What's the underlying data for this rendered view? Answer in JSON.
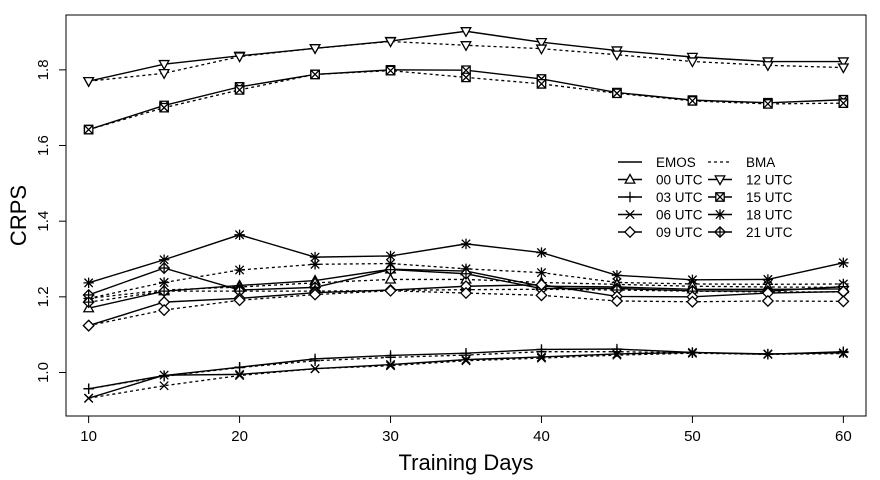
{
  "chart_data": {
    "type": "line",
    "xlabel": "Training Days",
    "ylabel": "CRPS",
    "xlim": [
      8.5,
      61.5
    ],
    "ylim": [
      0.885,
      1.945
    ],
    "x": [
      10,
      15,
      20,
      25,
      30,
      35,
      40,
      45,
      50,
      55,
      60
    ],
    "xticks": [
      10,
      20,
      30,
      40,
      50,
      60
    ],
    "yticks": [
      1.0,
      1.2,
      1.4,
      1.6,
      1.8
    ],
    "ytick_labels": [
      "1.0",
      "1.2",
      "1.4",
      "1.6",
      "1.8"
    ],
    "legend": {
      "placement": "right",
      "method_labels": [
        "EMOS",
        "BMA"
      ],
      "entries": [
        {
          "label": "00 UTC",
          "marker": "triangle"
        },
        {
          "label": "12 UTC",
          "marker": "triangle-down"
        },
        {
          "label": "03 UTC",
          "marker": "plus"
        },
        {
          "label": "15 UTC",
          "marker": "square-cross"
        },
        {
          "label": "06 UTC",
          "marker": "cross"
        },
        {
          "label": "18 UTC",
          "marker": "asterisk"
        },
        {
          "label": "09 UTC",
          "marker": "diamond"
        },
        {
          "label": "21 UTC",
          "marker": "diamond-plus"
        }
      ]
    },
    "series": [
      {
        "name": "12 UTC EMOS",
        "marker": "triangle-down",
        "style": "solid",
        "values": [
          1.77,
          1.815,
          1.837,
          1.857,
          1.876,
          1.902,
          1.873,
          1.851,
          1.834,
          1.822,
          1.822
        ]
      },
      {
        "name": "12 UTC BMA",
        "marker": "triangle-down",
        "style": "dotted",
        "values": [
          1.77,
          1.791,
          1.835,
          1.857,
          1.875,
          1.865,
          1.856,
          1.84,
          1.822,
          1.812,
          1.806
        ]
      },
      {
        "name": "15 UTC EMOS",
        "marker": "square-cross",
        "style": "solid",
        "values": [
          1.642,
          1.706,
          1.755,
          1.788,
          1.8,
          1.799,
          1.776,
          1.74,
          1.72,
          1.713,
          1.721
        ]
      },
      {
        "name": "15 UTC BMA",
        "marker": "square-cross",
        "style": "dotted",
        "values": [
          1.642,
          1.7,
          1.747,
          1.788,
          1.798,
          1.78,
          1.763,
          1.738,
          1.718,
          1.71,
          1.712
        ]
      },
      {
        "name": "18 UTC EMOS",
        "marker": "asterisk",
        "style": "solid",
        "values": [
          1.237,
          1.298,
          1.364,
          1.305,
          1.308,
          1.34,
          1.317,
          1.257,
          1.245,
          1.246,
          1.29
        ]
      },
      {
        "name": "18 UTC BMA",
        "marker": "asterisk",
        "style": "dotted",
        "values": [
          1.196,
          1.238,
          1.271,
          1.286,
          1.288,
          1.274,
          1.264,
          1.238,
          1.234,
          1.233,
          1.234
        ]
      },
      {
        "name": "00 UTC EMOS",
        "marker": "triangle",
        "style": "solid",
        "values": [
          1.17,
          1.215,
          1.23,
          1.243,
          1.273,
          1.268,
          1.228,
          1.226,
          1.22,
          1.22,
          1.221
        ]
      },
      {
        "name": "00 UTC BMA",
        "marker": "triangle",
        "style": "dotted",
        "values": [
          1.196,
          1.218,
          1.226,
          1.237,
          1.246,
          1.246,
          1.238,
          1.233,
          1.228,
          1.226,
          1.225
        ]
      },
      {
        "name": "21 UTC EMOS",
        "marker": "diamond-plus",
        "style": "solid",
        "values": [
          1.205,
          1.276,
          1.218,
          1.225,
          1.272,
          1.261,
          1.222,
          1.222,
          1.216,
          1.215,
          1.227
        ]
      },
      {
        "name": "21 UTC BMA",
        "marker": "diamond-plus",
        "style": "dotted",
        "values": [
          1.186,
          1.215,
          1.215,
          1.215,
          1.217,
          1.219,
          1.22,
          1.218,
          1.215,
          1.213,
          1.213
        ]
      },
      {
        "name": "09 UTC EMOS",
        "marker": "diamond",
        "style": "solid",
        "values": [
          1.124,
          1.186,
          1.196,
          1.211,
          1.218,
          1.228,
          1.232,
          1.201,
          1.2,
          1.21,
          1.214
        ]
      },
      {
        "name": "09 UTC BMA",
        "marker": "diamond",
        "style": "dotted",
        "values": [
          1.124,
          1.165,
          1.191,
          1.206,
          1.216,
          1.21,
          1.204,
          1.189,
          1.187,
          1.189,
          1.188
        ]
      },
      {
        "name": "03 UTC EMOS",
        "marker": "plus",
        "style": "solid",
        "values": [
          0.957,
          0.992,
          1.014,
          1.036,
          1.045,
          1.051,
          1.061,
          1.062,
          1.053,
          1.048,
          1.055
        ]
      },
      {
        "name": "03 UTC BMA",
        "marker": "plus",
        "style": "dotted",
        "values": [
          0.957,
          0.99,
          1.013,
          1.031,
          1.04,
          1.046,
          1.055,
          1.055,
          1.052,
          1.049,
          1.053
        ]
      },
      {
        "name": "06 UTC EMOS",
        "marker": "cross",
        "style": "solid",
        "values": [
          0.932,
          0.993,
          0.995,
          1.01,
          1.021,
          1.034,
          1.041,
          1.049,
          1.053,
          1.049,
          1.052
        ]
      },
      {
        "name": "06 UTC BMA",
        "marker": "cross",
        "style": "dotted",
        "values": [
          0.932,
          0.965,
          0.992,
          1.01,
          1.018,
          1.031,
          1.038,
          1.046,
          1.051,
          1.048,
          1.05
        ]
      }
    ]
  }
}
